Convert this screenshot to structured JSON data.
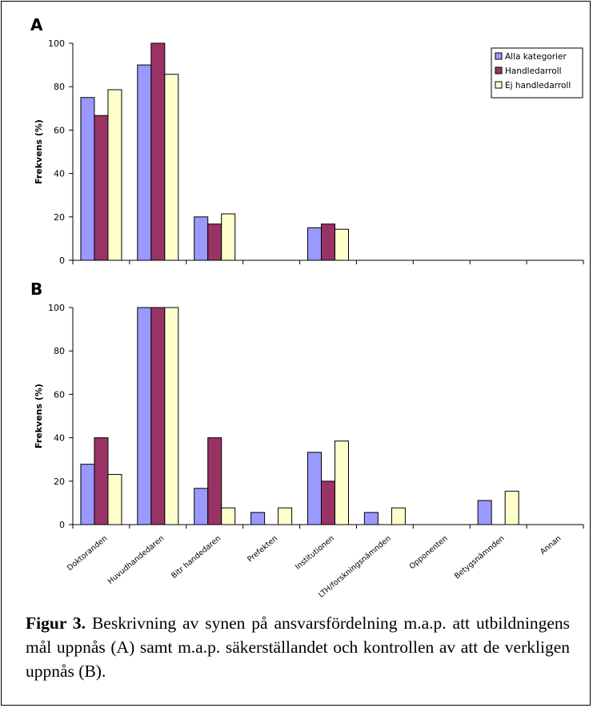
{
  "chart_data": [
    {
      "type": "bar",
      "panel_label": "A",
      "ylabel": "Frekvens (%)",
      "ylim": [
        0,
        100
      ],
      "yticks": [
        0,
        20,
        40,
        60,
        80,
        100
      ],
      "categories": [
        "Doktoranden",
        "Huvudhandedaren",
        "Bitr handedaren",
        "Prefekten",
        "Institutionen",
        "LTH/forskningsnämnden",
        "Opponenten",
        "Betygsnämnden",
        "Annan"
      ],
      "series": [
        {
          "name": "Alla kategorier",
          "color": "#9999ff",
          "values": [
            75,
            90,
            20,
            0,
            15,
            0,
            0,
            0,
            0
          ]
        },
        {
          "name": "Handledarroll",
          "color": "#993366",
          "values": [
            66.7,
            100,
            16.7,
            0,
            16.7,
            0,
            0,
            0,
            0
          ]
        },
        {
          "name": "Ej handledarroll",
          "color": "#ffffcc",
          "values": [
            78.6,
            85.7,
            21.4,
            0,
            14.3,
            0,
            0,
            0,
            0
          ]
        }
      ],
      "legend_position": "top-right",
      "grid": false
    },
    {
      "type": "bar",
      "panel_label": "B",
      "ylabel": "Frekvens (%)",
      "ylim": [
        0,
        100
      ],
      "yticks": [
        0,
        20,
        40,
        60,
        80,
        100
      ],
      "categories": [
        "Doktoranden",
        "Huvudhandedaren",
        "Bitr handedaren",
        "Prefekten",
        "Institutionen",
        "LTH/forskningsnämnden",
        "Opponenten",
        "Betygsnämnden",
        "Annan"
      ],
      "series": [
        {
          "name": "Alla kategorier",
          "color": "#9999ff",
          "values": [
            27.8,
            100,
            16.7,
            5.6,
            33.3,
            5.6,
            0,
            11.1,
            0
          ]
        },
        {
          "name": "Handledarroll",
          "color": "#993366",
          "values": [
            40,
            100,
            40,
            0,
            20,
            0,
            0,
            0,
            0
          ]
        },
        {
          "name": "Ej handledarroll",
          "color": "#ffffcc",
          "values": [
            23.1,
            100,
            7.7,
            7.7,
            38.5,
            7.7,
            0,
            15.4,
            0
          ]
        }
      ],
      "grid": false
    }
  ],
  "caption": {
    "label": "Figur 3.",
    "text": " Beskrivning av synen på ansvarsfördelning m.a.p. att utbildningens mål uppnås (A) samt m.a.p. säkerställandet och kontrollen av att de verkligen uppnås (B)."
  }
}
